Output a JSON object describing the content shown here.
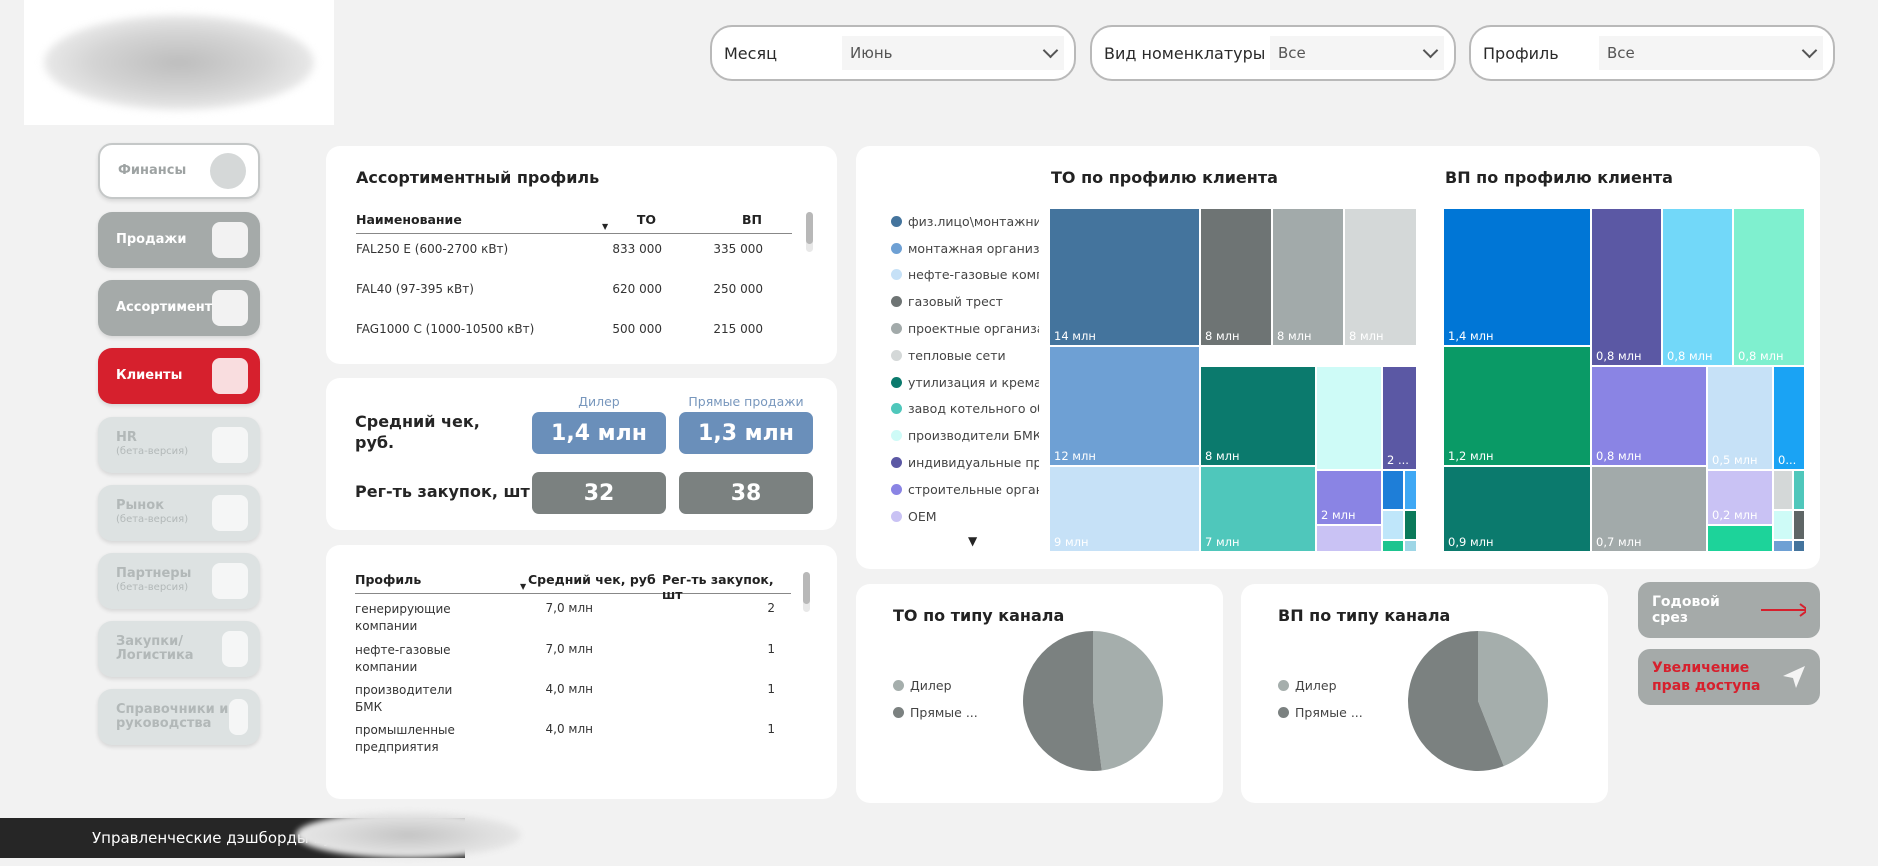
{
  "filters": [
    {
      "label": "Месяц",
      "value": "Июнь"
    },
    {
      "label": "Вид номенклатуры",
      "value": "Все"
    },
    {
      "label": "Профиль",
      "value": "Все"
    }
  ],
  "nav": [
    {
      "label": "Финансы",
      "sub": "",
      "style": "light",
      "icon": "finance-icon"
    },
    {
      "label": "Продажи",
      "sub": "",
      "style": "gray",
      "icon": "flame-icon"
    },
    {
      "label": "Ассортимент",
      "sub": "",
      "style": "gray",
      "icon": "star-icon"
    },
    {
      "label": "Клиенты",
      "sub": "",
      "style": "red",
      "icon": "clients-icon"
    },
    {
      "label": "HR",
      "sub": "(бета-версия)",
      "style": "faded",
      "icon": "envelope-icon"
    },
    {
      "label": "Рынок",
      "sub": "(бета-версия)",
      "style": "faded",
      "icon": "flag-icon"
    },
    {
      "label": "Партнеры",
      "sub": "(бета-версия)",
      "style": "faded",
      "icon": "folder-icon"
    },
    {
      "label": "Закупки/ Логистика",
      "sub": "",
      "style": "faded",
      "icon": "gear-icon"
    },
    {
      "label": "Справочники и руководства",
      "sub": "",
      "style": "faded",
      "icon": "book-icon"
    }
  ],
  "assortment": {
    "title": "Ассортиментный профиль",
    "headers": [
      "Наименование",
      "ТО",
      "ВП"
    ],
    "rows": [
      [
        "FAL250 E (600-2700 кВт)",
        "833 000",
        "335 000"
      ],
      [
        "FAL40 (97-395 кВт)",
        "620 000",
        "250 000"
      ],
      [
        "FAG1000 C (1000-10500 кВт)",
        "500 000",
        "215 000"
      ]
    ]
  },
  "kpi": {
    "col_dealer": "Дилер",
    "col_direct": "Прямые продажи",
    "avg_check_label": "Средний чек, руб.",
    "avg_check_dealer": "1,4 млн",
    "avg_check_direct": "1,3 млн",
    "regularity_label": "Рег-ть закупок, шт",
    "regularity_dealer": "32",
    "regularity_direct": "38"
  },
  "profile_table": {
    "headers": [
      "Профиль",
      "Средний чек, руб",
      "Рег-ть закупок, шт"
    ],
    "rows": [
      [
        "генерирующие компании",
        "7,0 млн",
        "2"
      ],
      [
        "нефте-газовые компании",
        "7,0 млн",
        "1"
      ],
      [
        "производители БМК",
        "4,0 млн",
        "1"
      ],
      [
        "промышленные предприятия",
        "4,0 млн",
        "1"
      ]
    ]
  },
  "legend": [
    {
      "label": "физ.лицо\\монтажник",
      "color": "#44749d"
    },
    {
      "label": "монтажная организ...",
      "color": "#6ea0d4"
    },
    {
      "label": "нефте-газовые комп...",
      "color": "#c6e1f7"
    },
    {
      "label": "газовый трест",
      "color": "#6e7474"
    },
    {
      "label": "проектные организа...",
      "color": "#a2aaaa"
    },
    {
      "label": "тепловые сети",
      "color": "#d4d8d8"
    },
    {
      "label": "утилизация и крема...",
      "color": "#0b7a6d"
    },
    {
      "label": "завод котельного об...",
      "color": "#4fc7bb"
    },
    {
      "label": "производители БМК",
      "color": "#cefbf7"
    },
    {
      "label": "индивидуальные пр...",
      "color": "#5b58a4"
    },
    {
      "label": "строительные орган...",
      "color": "#8a84e4"
    },
    {
      "label": "OEM",
      "color": "#c9c2f4"
    }
  ],
  "treemap_to": {
    "title": "ТО по профилю клиента",
    "labels": {
      "c1": "14 млн",
      "c2": "8 млн",
      "c3": "8 млн",
      "c4": "8 млн",
      "c5": "12 млн",
      "c6": "8 млн",
      "c7": "9 млн",
      "c8": "7 млн",
      "c9": "2 млн",
      "c10": "2 ..."
    }
  },
  "treemap_vp": {
    "title": "ВП по профилю клиента",
    "labels": {
      "c1": "1,4 млн",
      "c2": "0,8 млн",
      "c3": "0,8 млн",
      "c4": "0,8 млн",
      "c5": "1,2 млн",
      "c6": "0,8 млн",
      "c7": "0,5 млн",
      "c8": "0...",
      "c9": "0,9 млн",
      "c10": "0,7 млн",
      "c11": "0,2 млн"
    }
  },
  "pie_to": {
    "title": "ТО по типу канала",
    "legend": [
      "Дилер",
      "Прямые ..."
    ]
  },
  "pie_vp": {
    "title": "ВП по типу канала",
    "legend": [
      "Дилер",
      "Прямые ..."
    ]
  },
  "chart_data": [
    {
      "type": "pie",
      "title": "ТО по типу канала",
      "categories": [
        "Дилер",
        "Прямые ..."
      ],
      "values": [
        48,
        52
      ],
      "colors": [
        "#a5aeac",
        "#7b8180"
      ]
    },
    {
      "type": "pie",
      "title": "ВП по типу канала",
      "categories": [
        "Дилер",
        "Прямые ..."
      ],
      "values": [
        44,
        56
      ],
      "colors": [
        "#a5aeac",
        "#7b8180"
      ]
    }
  ],
  "side_buttons": {
    "annual": "Годовой срез",
    "access": "Увеличение прав доступа"
  },
  "footer": "Управленческие дэшборды by"
}
